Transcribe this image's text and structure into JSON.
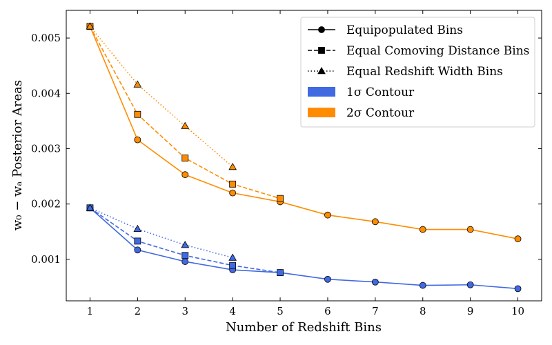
{
  "chart_data": {
    "type": "line",
    "xlabel": "Number of Redshift Bins",
    "ylabel": "w₀ − wₐ Posterior Areas",
    "x_ticks": [
      1,
      2,
      3,
      4,
      5,
      6,
      7,
      8,
      9,
      10
    ],
    "y_ticks": [
      0.001,
      0.002,
      0.003,
      0.004,
      0.005
    ],
    "y_tick_labels": [
      "0.001",
      "0.002",
      "0.003",
      "0.004",
      "0.005"
    ],
    "xlim": [
      0.5,
      10.5
    ],
    "ylim": [
      0.00025,
      0.0055
    ],
    "grid": false,
    "legend_position": "upper-right",
    "colors": {
      "one_sigma": "#4169e1",
      "two_sigma": "#ff8c00"
    },
    "legend": [
      {
        "label": "Equipopulated Bins",
        "kind": "line",
        "style": "solid",
        "marker": "circle"
      },
      {
        "label": "Equal Comoving Distance Bins",
        "kind": "line",
        "style": "dashed",
        "marker": "square"
      },
      {
        "label": "Equal Redshift Width Bins",
        "kind": "line",
        "style": "dotted",
        "marker": "triangle"
      },
      {
        "label": "1σ Contour",
        "kind": "patch",
        "color": "#4169e1"
      },
      {
        "label": "2σ Contour",
        "kind": "patch",
        "color": "#ff8c00"
      }
    ],
    "series": [
      {
        "contour": "2sigma",
        "binning": "equipopulated",
        "style": "solid",
        "marker": "circle",
        "color": "#ff8c00",
        "x": [
          1,
          2,
          3,
          4,
          5,
          6,
          7,
          8,
          9,
          10
        ],
        "y": [
          0.00521,
          0.00316,
          0.00253,
          0.0022,
          0.00204,
          0.0018,
          0.00168,
          0.00154,
          0.00154,
          0.00137
        ]
      },
      {
        "contour": "2sigma",
        "binning": "equal_comoving_distance",
        "style": "dashed",
        "marker": "square",
        "color": "#ff8c00",
        "x": [
          1,
          2,
          3,
          4,
          5
        ],
        "y": [
          0.00521,
          0.00362,
          0.00283,
          0.00236,
          0.0021
        ]
      },
      {
        "contour": "2sigma",
        "binning": "equal_redshift_width",
        "style": "dotted",
        "marker": "triangle",
        "color": "#ff8c00",
        "x": [
          1,
          2,
          3,
          4
        ],
        "y": [
          0.00521,
          0.00416,
          0.00341,
          0.00267
        ]
      },
      {
        "contour": "1sigma",
        "binning": "equipopulated",
        "style": "solid",
        "marker": "circle",
        "color": "#4169e1",
        "x": [
          1,
          2,
          3,
          4,
          5,
          6,
          7,
          8,
          9,
          10
        ],
        "y": [
          0.00193,
          0.00117,
          0.00096,
          0.00081,
          0.00076,
          0.00064,
          0.00059,
          0.00053,
          0.00054,
          0.00047
        ]
      },
      {
        "contour": "1sigma",
        "binning": "equal_comoving_distance",
        "style": "dashed",
        "marker": "square",
        "color": "#4169e1",
        "x": [
          1,
          2,
          3,
          4,
          5
        ],
        "y": [
          0.00193,
          0.00133,
          0.00107,
          0.00089,
          0.00076
        ]
      },
      {
        "contour": "1sigma",
        "binning": "equal_redshift_width",
        "style": "dotted",
        "marker": "triangle",
        "color": "#4169e1",
        "x": [
          1,
          2,
          3,
          4
        ],
        "y": [
          0.00193,
          0.00155,
          0.00126,
          0.00103
        ]
      }
    ]
  }
}
